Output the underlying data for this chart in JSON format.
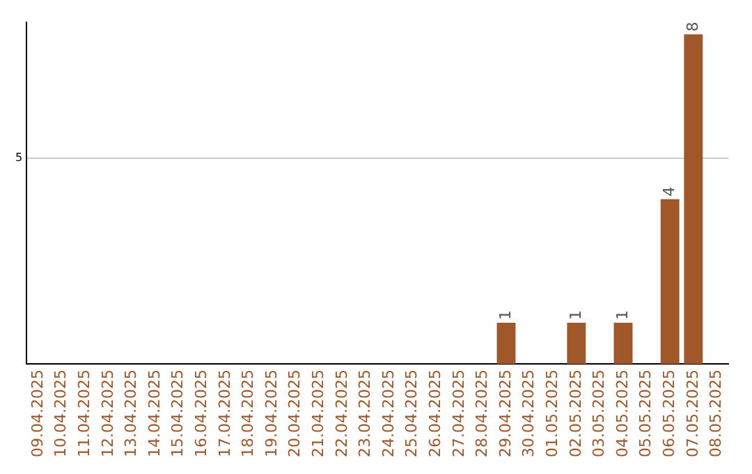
{
  "chart_data": {
    "type": "bar",
    "categories": [
      "09.04.2025",
      "10.04.2025",
      "11.04.2025",
      "12.04.2025",
      "13.04.2025",
      "14.04.2025",
      "15.04.2025",
      "16.04.2025",
      "17.04.2025",
      "18.04.2025",
      "19.04.2025",
      "20.04.2025",
      "21.04.2025",
      "22.04.2025",
      "23.04.2025",
      "24.04.2025",
      "25.04.2025",
      "26.04.2025",
      "27.04.2025",
      "28.04.2025",
      "29.04.2025",
      "30.04.2025",
      "01.05.2025",
      "02.05.2025",
      "03.05.2025",
      "04.05.2025",
      "05.05.2025",
      "06.05.2025",
      "07.05.2025",
      "08.05.2025"
    ],
    "values": [
      null,
      null,
      null,
      null,
      null,
      null,
      null,
      null,
      null,
      null,
      null,
      null,
      null,
      null,
      null,
      null,
      null,
      null,
      null,
      null,
      1,
      null,
      null,
      1,
      null,
      1,
      null,
      4,
      8,
      null
    ],
    "color": "#a0582a",
    "ylim": [
      0,
      8.3
    ],
    "yticks": [
      5
    ],
    "grid": "y",
    "data_labels": true,
    "legend": false
  }
}
